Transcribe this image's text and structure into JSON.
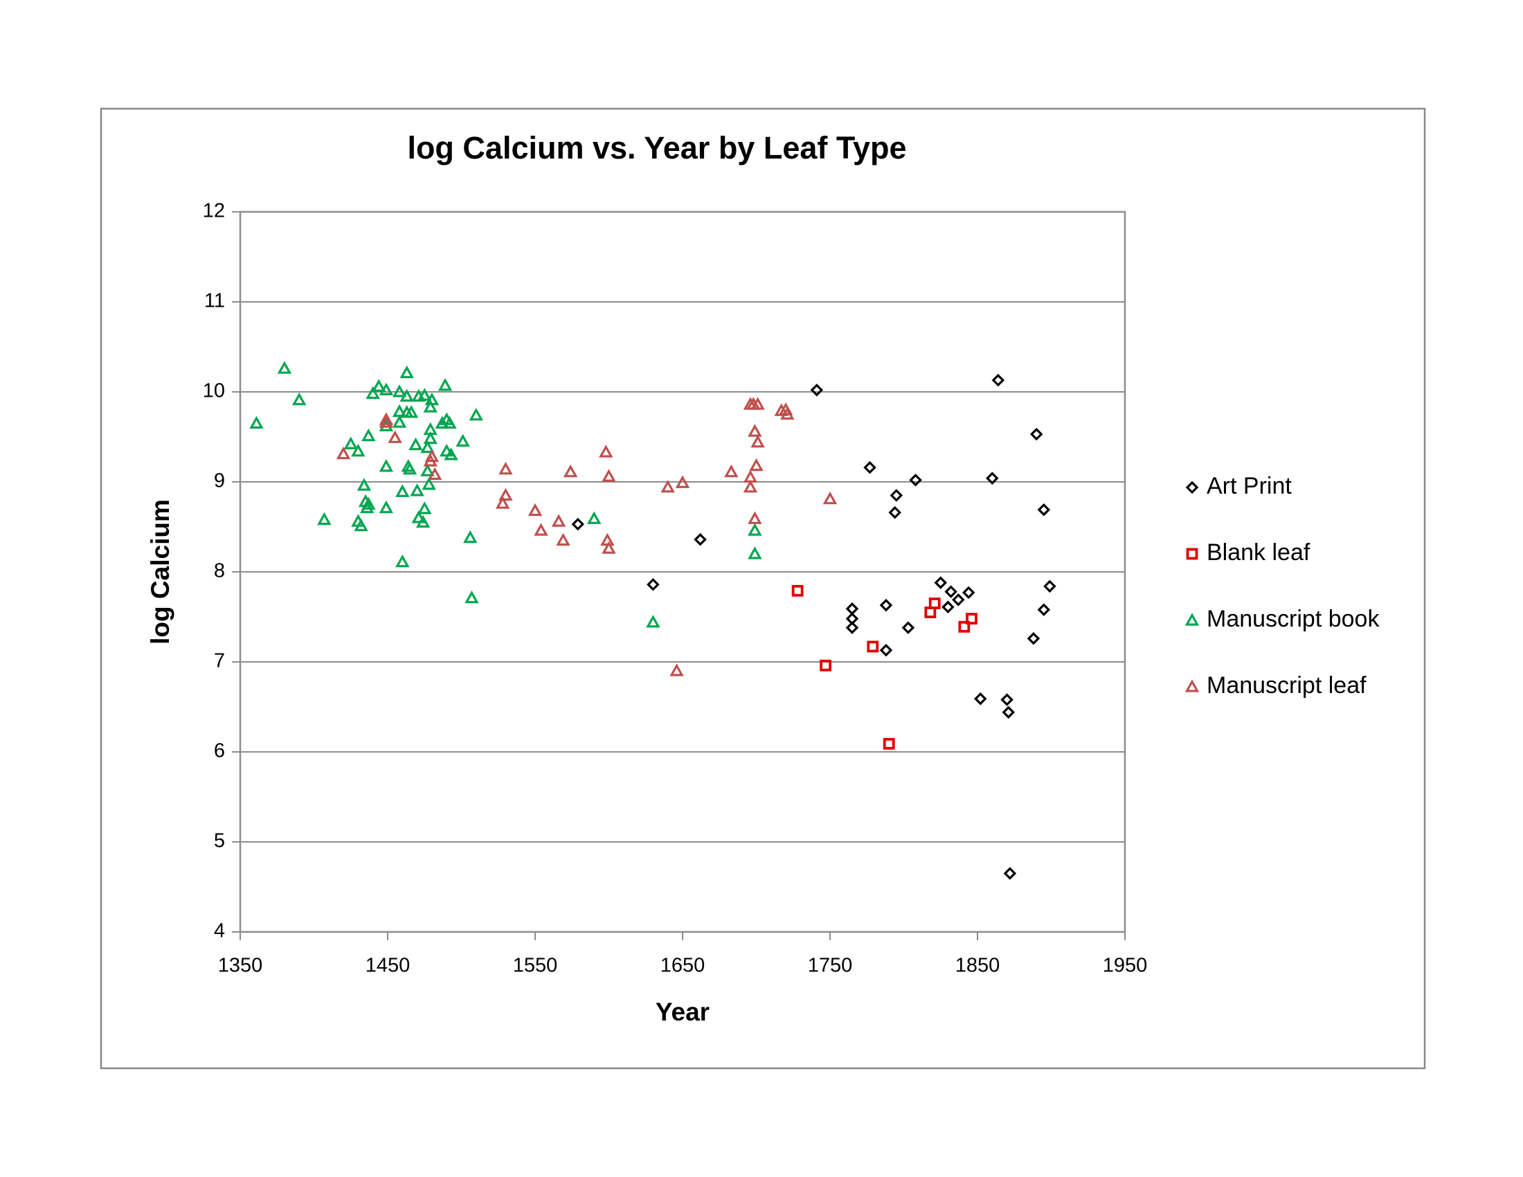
{
  "chart_data": {
    "type": "scatter",
    "title": "log Calcium vs. Year by Leaf Type",
    "x_label": "Year",
    "y_label": "log Calcium",
    "xlim": [
      1350,
      1950
    ],
    "xticks": [
      1350,
      1450,
      1550,
      1650,
      1750,
      1850,
      1950
    ],
    "ylim": [
      4,
      12
    ],
    "yticks": [
      4,
      5,
      6,
      7,
      8,
      9,
      10,
      11,
      12
    ],
    "grid": true,
    "legend": "right",
    "series": [
      {
        "name": "Art Print",
        "color": "#000000",
        "marker": "diamond",
        "x": [
          1579,
          1630,
          1662,
          1741,
          1777,
          1795,
          1794,
          1808,
          1765,
          1765,
          1765,
          1788,
          1788,
          1803,
          1825,
          1832,
          1830,
          1837,
          1844,
          1864,
          1860,
          1890,
          1895,
          1899,
          1895,
          1888,
          1852,
          1870,
          1871,
          1872
        ],
        "values": [
          8.53,
          7.86,
          8.36,
          10.02,
          9.16,
          8.85,
          8.66,
          9.02,
          7.59,
          7.48,
          7.38,
          7.63,
          7.13,
          7.38,
          7.88,
          7.78,
          7.61,
          7.69,
          7.77,
          10.13,
          9.04,
          9.53,
          8.69,
          7.84,
          7.58,
          7.26,
          6.59,
          6.58,
          6.44,
          4.65
        ]
      },
      {
        "name": "Blank leaf",
        "color": "#e00000",
        "marker": "square",
        "x": [
          1728,
          1747,
          1779,
          1818,
          1821,
          1841,
          1846,
          1790
        ],
        "values": [
          7.79,
          6.96,
          7.17,
          7.55,
          7.65,
          7.39,
          7.48,
          6.09
        ]
      },
      {
        "name": "Manuscript book",
        "color": "#00a650",
        "marker": "triangle",
        "x": [
          1361,
          1380,
          1390,
          1407,
          1425,
          1430,
          1430,
          1432,
          1434,
          1435,
          1436,
          1437,
          1437,
          1440,
          1444,
          1449,
          1449,
          1449,
          1449,
          1458,
          1458,
          1458,
          1460,
          1460,
          1463,
          1463,
          1463,
          1464,
          1465,
          1466,
          1469,
          1470,
          1471,
          1471,
          1474,
          1475,
          1475,
          1477,
          1477,
          1478,
          1479,
          1479,
          1479,
          1480,
          1487,
          1489,
          1490,
          1490,
          1492,
          1493,
          1501,
          1506,
          1507,
          1510,
          1590,
          1630,
          1699,
          1699
        ],
        "values": [
          9.65,
          10.26,
          9.91,
          8.58,
          9.42,
          9.34,
          8.56,
          8.51,
          8.96,
          8.78,
          8.71,
          8.75,
          9.51,
          9.98,
          10.06,
          10.02,
          9.62,
          9.17,
          8.71,
          9.78,
          10.0,
          9.66,
          8.89,
          8.11,
          10.21,
          9.95,
          9.77,
          9.17,
          9.14,
          9.77,
          9.41,
          8.9,
          8.6,
          9.95,
          8.55,
          9.96,
          8.7,
          9.12,
          9.38,
          8.97,
          9.83,
          9.58,
          9.48,
          9.91,
          9.65,
          10.07,
          9.34,
          9.69,
          9.65,
          9.3,
          9.45,
          8.38,
          7.71,
          9.74,
          8.59,
          7.44,
          8.46,
          8.2
        ]
      },
      {
        "name": "Manuscript leaf",
        "color": "#c0504d",
        "marker": "triangle",
        "x": [
          1420,
          1449,
          1449,
          1455,
          1479,
          1480,
          1482,
          1528,
          1530,
          1530,
          1550,
          1554,
          1566,
          1569,
          1574,
          1598,
          1599,
          1600,
          1600,
          1640,
          1650,
          1646,
          1683,
          1696,
          1696,
          1696,
          1698,
          1701,
          1699,
          1699,
          1700,
          1701,
          1717,
          1720,
          1721,
          1750
        ],
        "values": [
          9.31,
          9.69,
          9.66,
          9.49,
          9.23,
          9.28,
          9.08,
          8.76,
          8.85,
          9.14,
          8.68,
          8.46,
          8.56,
          8.35,
          9.11,
          9.33,
          8.35,
          8.26,
          9.06,
          8.94,
          8.99,
          6.9,
          9.11,
          9.86,
          9.05,
          8.94,
          9.86,
          9.86,
          8.59,
          9.56,
          9.18,
          9.44,
          9.79,
          9.8,
          9.75,
          8.81
        ]
      }
    ]
  }
}
